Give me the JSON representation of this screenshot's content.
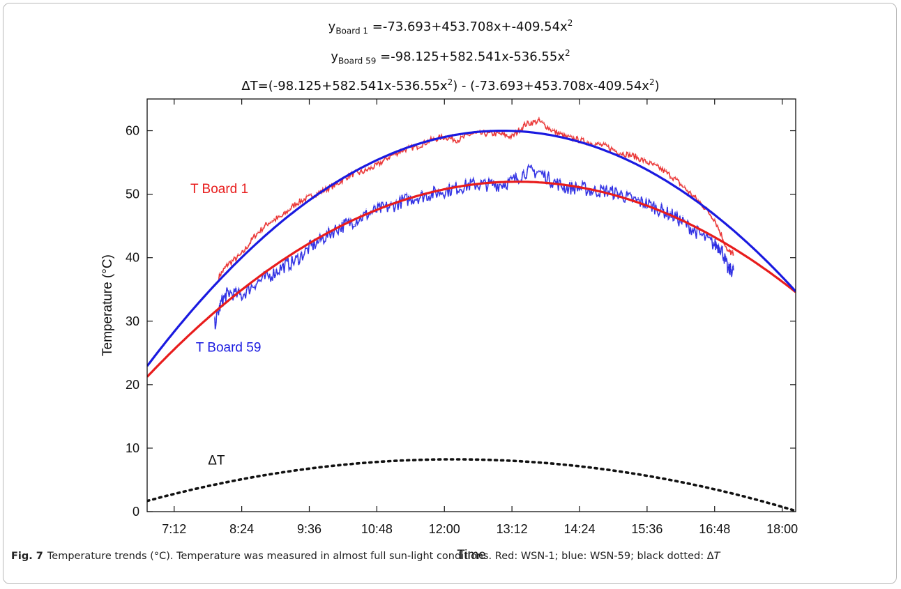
{
  "equations": {
    "line1": {
      "y": "y",
      "sub": "Board 1",
      "text": " =-73.693+453.708x+-409.54x",
      "sup": "2"
    },
    "line2": {
      "y": "y",
      "sub": "Board 59",
      "text": " =-98.125+582.541x-536.55x",
      "sup": "2"
    },
    "line3": {
      "a": "ΔT=(-98.125+582.541x-536.55x",
      "sup1": "2",
      "b": ") - (-73.693+453.708x-409.54x",
      "sup2": "2",
      "c": ")"
    }
  },
  "caption": {
    "label": "Fig. 7",
    "text": "Temperature trends (°C). Temperature was measured in almost full sun-light conditions. Red: WSN-1; blue: WSN-59; black dotted: Δ",
    "italic_tail": "T"
  },
  "chart_data": {
    "type": "line",
    "title": "",
    "xlabel": "Time",
    "ylabel": "Temperature (°C)",
    "x_unit": "fraction of day",
    "xlim": [
      0.28,
      0.76
    ],
    "ylim": [
      0,
      65
    ],
    "x_ticks": [
      {
        "label": "7:12",
        "value": 0.3
      },
      {
        "label": "8:24",
        "value": 0.35
      },
      {
        "label": "9:36",
        "value": 0.4
      },
      {
        "label": "10:48",
        "value": 0.45
      },
      {
        "label": "12:00",
        "value": 0.5
      },
      {
        "label": "13:12",
        "value": 0.55
      },
      {
        "label": "14:24",
        "value": 0.6
      },
      {
        "label": "15:36",
        "value": 0.65
      },
      {
        "label": "16:48",
        "value": 0.7
      },
      {
        "label": "18:00",
        "value": 0.75
      }
    ],
    "y_ticks": [
      0,
      10,
      20,
      30,
      40,
      50,
      60
    ],
    "grid": false,
    "fits": [
      {
        "name": "T Board 1",
        "color": "#e81c1c",
        "coeffs": [
          -73.693,
          453.708,
          -409.54
        ]
      },
      {
        "name": "T Board 59",
        "color": "#1a1ae0",
        "coeffs": [
          -98.125,
          582.541,
          -536.55
        ]
      },
      {
        "name": "ΔT",
        "color": "#111111",
        "style": "dotted",
        "coeffs": [
          -24.432,
          128.833,
          -127.01
        ]
      }
    ],
    "measured": [
      {
        "series": "WSN-1",
        "color": "#e81c1c",
        "x": [
          0.333,
          0.34,
          0.35,
          0.36,
          0.37,
          0.38,
          0.39,
          0.4,
          0.41,
          0.42,
          0.43,
          0.44,
          0.45,
          0.46,
          0.47,
          0.48,
          0.49,
          0.5,
          0.51,
          0.52,
          0.53,
          0.54,
          0.55,
          0.56,
          0.57,
          0.58,
          0.59,
          0.6,
          0.61,
          0.62,
          0.63,
          0.64,
          0.65,
          0.66,
          0.67,
          0.68,
          0.69,
          0.7,
          0.71,
          0.714
        ],
        "y": [
          37,
          39,
          40.5,
          43.5,
          45.5,
          46.5,
          48.5,
          49.5,
          50.5,
          51.5,
          53,
          53.5,
          54.5,
          56,
          57,
          57.5,
          58.5,
          59,
          58.5,
          59.5,
          59.5,
          59.5,
          59,
          61,
          61.5,
          60,
          59,
          58.5,
          58,
          57.5,
          56.5,
          56,
          55,
          54,
          52.5,
          50.5,
          48.5,
          46,
          41,
          40.5
        ]
      },
      {
        "series": "WSN-59",
        "color": "#1a1ae0",
        "x": [
          0.33,
          0.335,
          0.34,
          0.35,
          0.36,
          0.37,
          0.38,
          0.39,
          0.4,
          0.41,
          0.42,
          0.43,
          0.44,
          0.45,
          0.46,
          0.47,
          0.48,
          0.49,
          0.5,
          0.51,
          0.52,
          0.53,
          0.54,
          0.55,
          0.56,
          0.57,
          0.58,
          0.59,
          0.6,
          0.61,
          0.62,
          0.63,
          0.64,
          0.65,
          0.66,
          0.67,
          0.68,
          0.69,
          0.7,
          0.705,
          0.71,
          0.714
        ],
        "y": [
          29.5,
          33,
          34.5,
          34,
          36,
          37,
          38.5,
          39.5,
          41.5,
          43,
          44.5,
          45.5,
          46.5,
          47.5,
          48,
          49,
          49.5,
          50,
          50.5,
          51,
          51.5,
          51.5,
          51.5,
          52,
          53.5,
          53.5,
          52,
          51,
          51,
          50.5,
          50.5,
          50,
          49,
          48.5,
          47.5,
          46.5,
          45,
          43.5,
          42,
          41.5,
          38,
          38
        ]
      }
    ],
    "labels": [
      {
        "text": "T Board 1",
        "color": "#e81c1c"
      },
      {
        "text": "T Board 59",
        "color": "#1a1ae0"
      },
      {
        "text": "ΔT",
        "color": "#111111"
      }
    ]
  }
}
